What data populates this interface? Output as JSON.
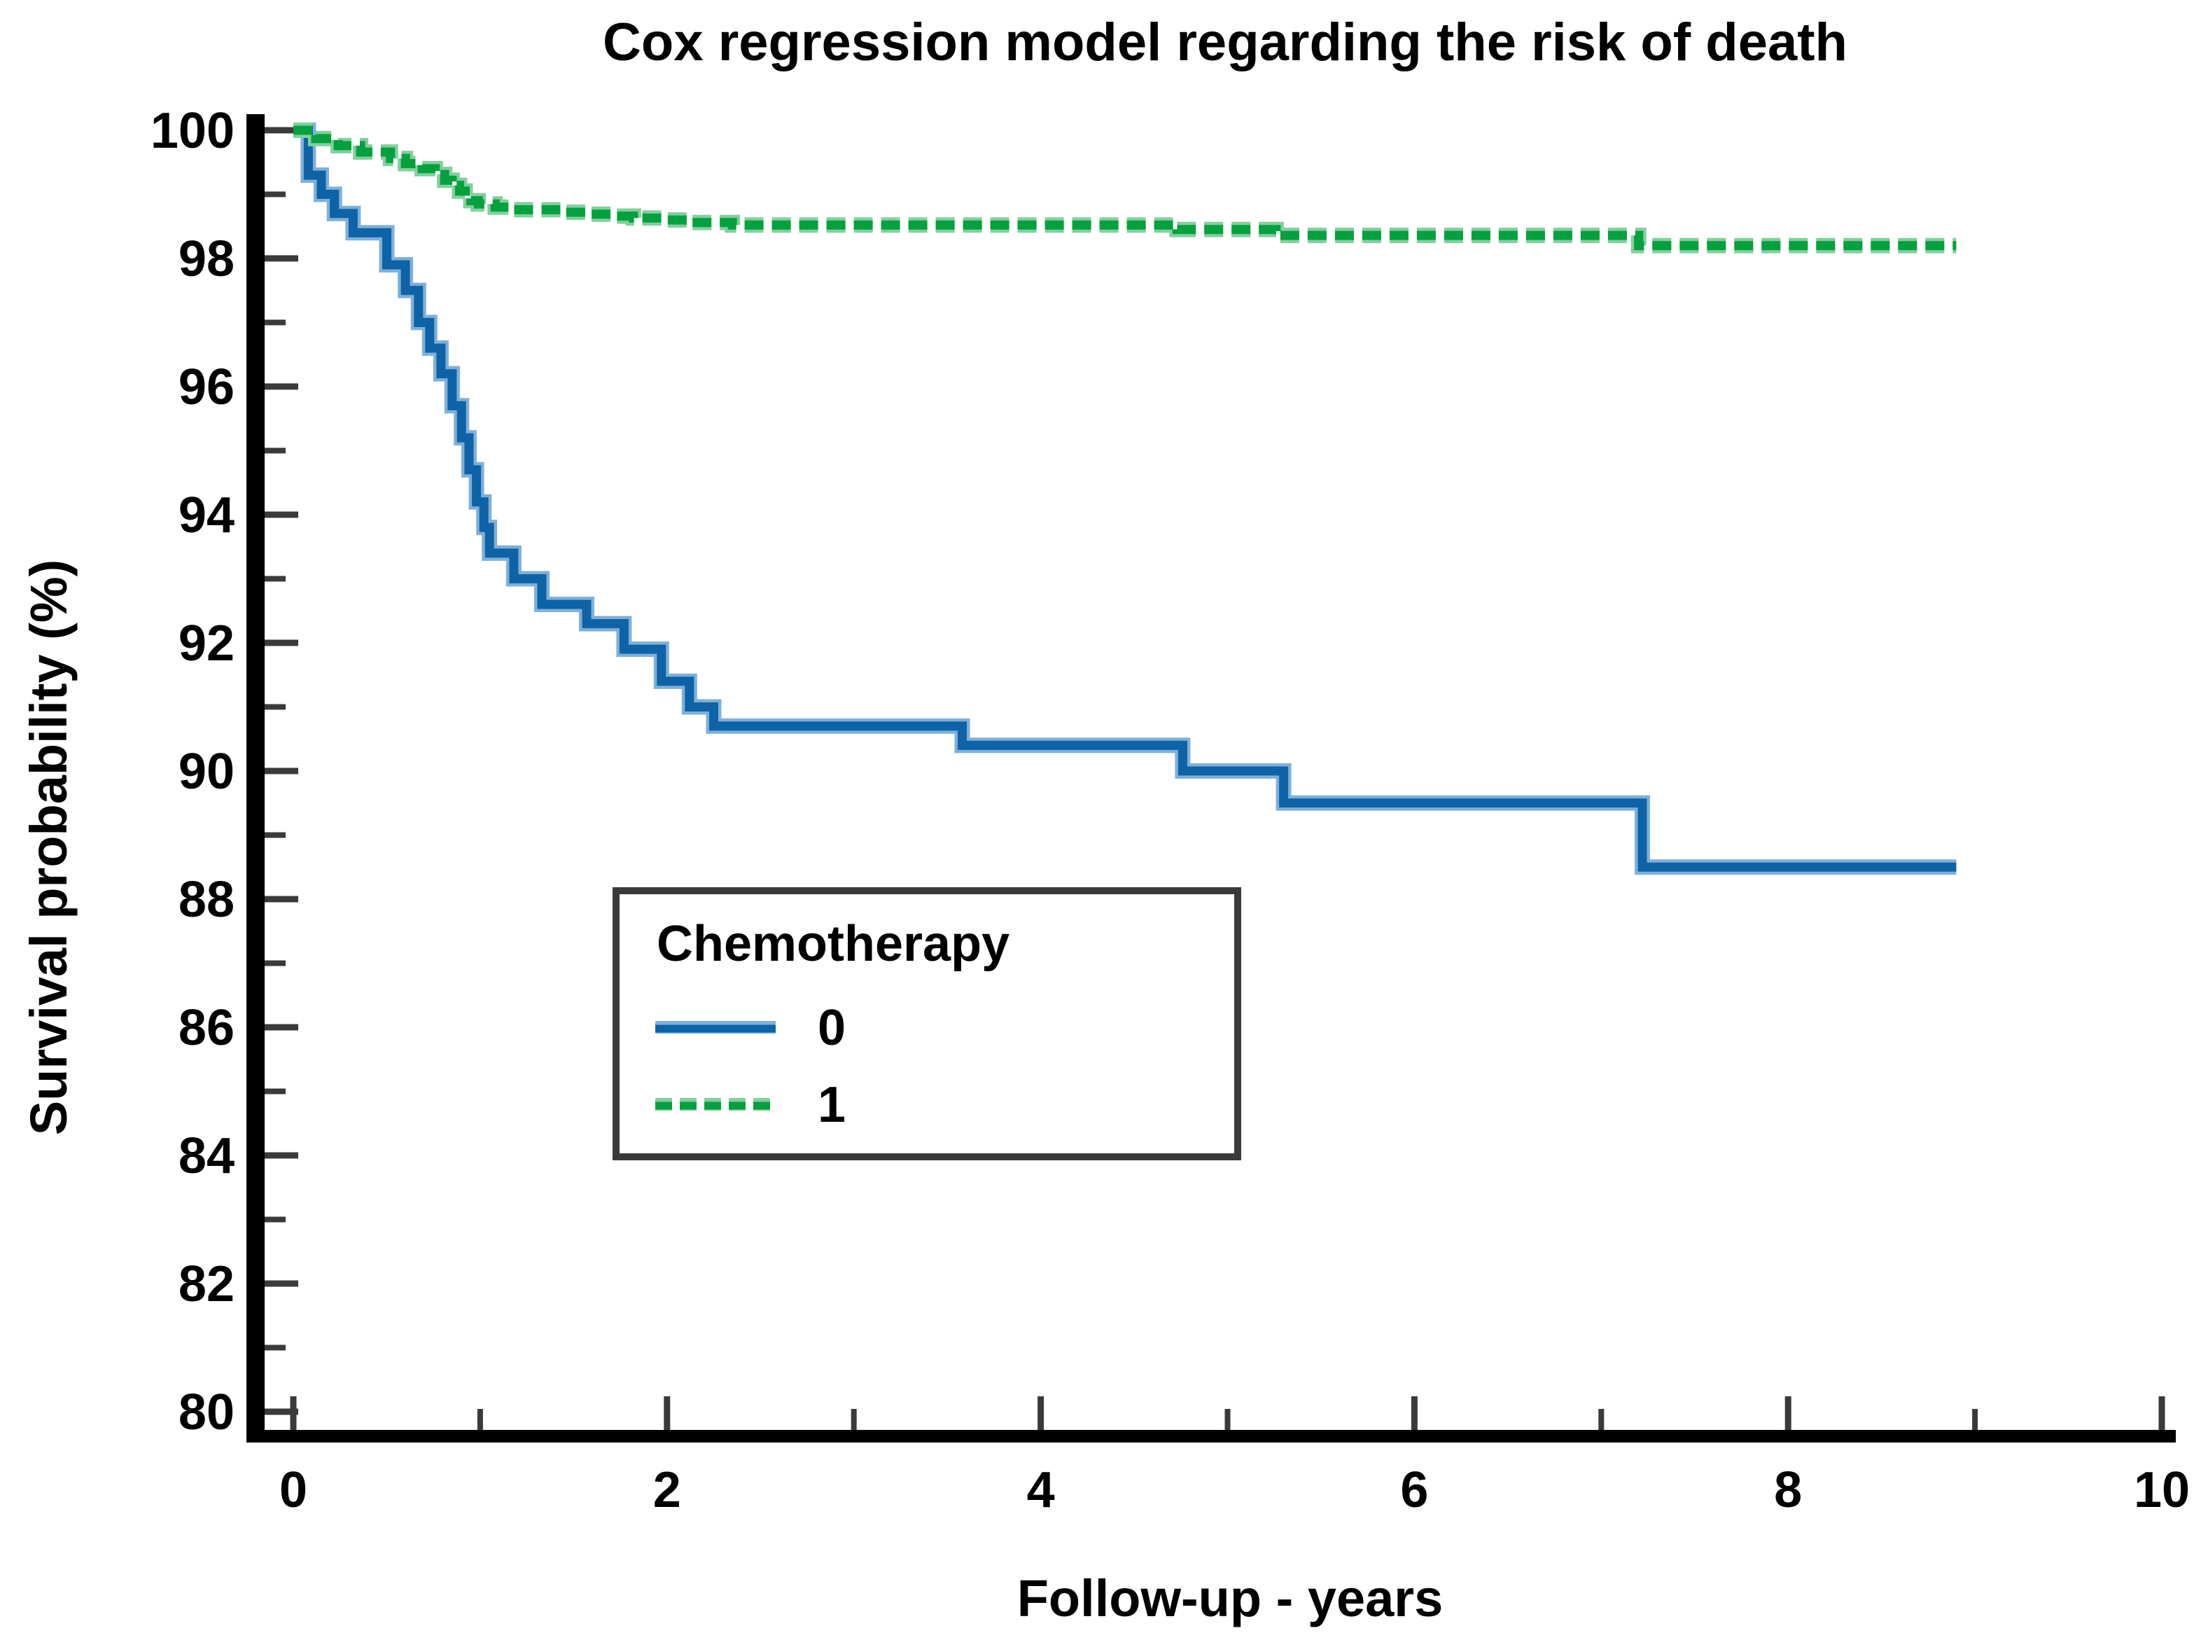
{
  "title": "Cox regression model regarding the risk of death",
  "x_axis": {
    "label": "Follow-up - years",
    "major_ticks": [
      0,
      2,
      4,
      6,
      8,
      10
    ],
    "minor_ticks": [
      1,
      3,
      5,
      7,
      9
    ],
    "range": [
      0,
      10
    ]
  },
  "y_axis": {
    "label": "Survival probability (%)",
    "major_ticks": [
      100,
      98,
      96,
      94,
      92,
      90,
      88,
      86,
      84,
      82,
      80
    ],
    "minor_ticks": [
      99,
      97,
      95,
      93,
      91,
      89,
      87,
      85,
      83,
      81
    ],
    "range": [
      80,
      100
    ]
  },
  "legend": {
    "title": "Chemotherapy",
    "entries": [
      {
        "label": "0",
        "style": "solid",
        "color": "#0d63a6"
      },
      {
        "label": "1",
        "style": "dashed",
        "color": "#04a13e"
      }
    ]
  },
  "colors": {
    "curve0_core": "#0d63a6",
    "curve0_halo": "#7fb0d8",
    "curve1_core": "#04a13e",
    "curve1_halo": "#83cf9d",
    "axis_spine": "#000000",
    "tick": "#3a3a3a",
    "legend_border": "#3a3a3a",
    "background": "#ffffff"
  },
  "chart_data": {
    "type": "line",
    "subtype": "kaplan-meier-step",
    "title": "Cox regression model regarding the risk of death",
    "xlabel": "Follow-up - years",
    "ylabel": "Survival probability (%)",
    "xlim": [
      0,
      10
    ],
    "ylim": [
      80,
      100
    ],
    "grid": false,
    "legend_position": "inside-center-left",
    "series": [
      {
        "name": "Chemotherapy 0",
        "legend_label": "0",
        "line_style": "solid",
        "color": "#0d63a6",
        "end_year": 8.9,
        "step_points": [
          [
            0.0,
            100.0
          ],
          [
            0.08,
            99.3
          ],
          [
            0.15,
            99.0
          ],
          [
            0.22,
            98.7
          ],
          [
            0.32,
            98.4
          ],
          [
            0.5,
            97.9
          ],
          [
            0.6,
            97.5
          ],
          [
            0.67,
            97.0
          ],
          [
            0.73,
            96.6
          ],
          [
            0.79,
            96.2
          ],
          [
            0.85,
            95.7
          ],
          [
            0.9,
            95.2
          ],
          [
            0.94,
            94.7
          ],
          [
            0.98,
            94.2
          ],
          [
            1.02,
            93.8
          ],
          [
            1.05,
            93.4
          ],
          [
            1.18,
            93.0
          ],
          [
            1.33,
            92.6
          ],
          [
            1.57,
            92.3
          ],
          [
            1.77,
            91.9
          ],
          [
            1.97,
            91.4
          ],
          [
            2.12,
            91.0
          ],
          [
            2.25,
            90.7
          ],
          [
            3.58,
            90.4
          ],
          [
            4.76,
            90.0
          ],
          [
            5.3,
            89.5
          ],
          [
            7.22,
            88.5
          ]
        ]
      },
      {
        "name": "Chemotherapy 1",
        "legend_label": "1",
        "line_style": "dashed",
        "color": "#04a13e",
        "end_year": 8.9,
        "step_points": [
          [
            0.0,
            100.0
          ],
          [
            0.12,
            99.87
          ],
          [
            0.24,
            99.76
          ],
          [
            0.36,
            99.66
          ],
          [
            0.52,
            99.56
          ],
          [
            0.6,
            99.48
          ],
          [
            0.69,
            99.4
          ],
          [
            0.76,
            99.31
          ],
          [
            0.81,
            99.22
          ],
          [
            0.85,
            99.14
          ],
          [
            0.89,
            99.05
          ],
          [
            0.92,
            98.97
          ],
          [
            0.95,
            98.9
          ],
          [
            0.99,
            98.85
          ],
          [
            1.08,
            98.8
          ],
          [
            1.16,
            98.76
          ],
          [
            1.43,
            98.72
          ],
          [
            1.57,
            98.69
          ],
          [
            1.72,
            98.66
          ],
          [
            1.82,
            98.63
          ],
          [
            1.97,
            98.6
          ],
          [
            2.13,
            98.56
          ],
          [
            2.35,
            98.52
          ],
          [
            4.73,
            98.45
          ],
          [
            5.26,
            98.36
          ],
          [
            7.2,
            98.2
          ]
        ]
      }
    ]
  }
}
